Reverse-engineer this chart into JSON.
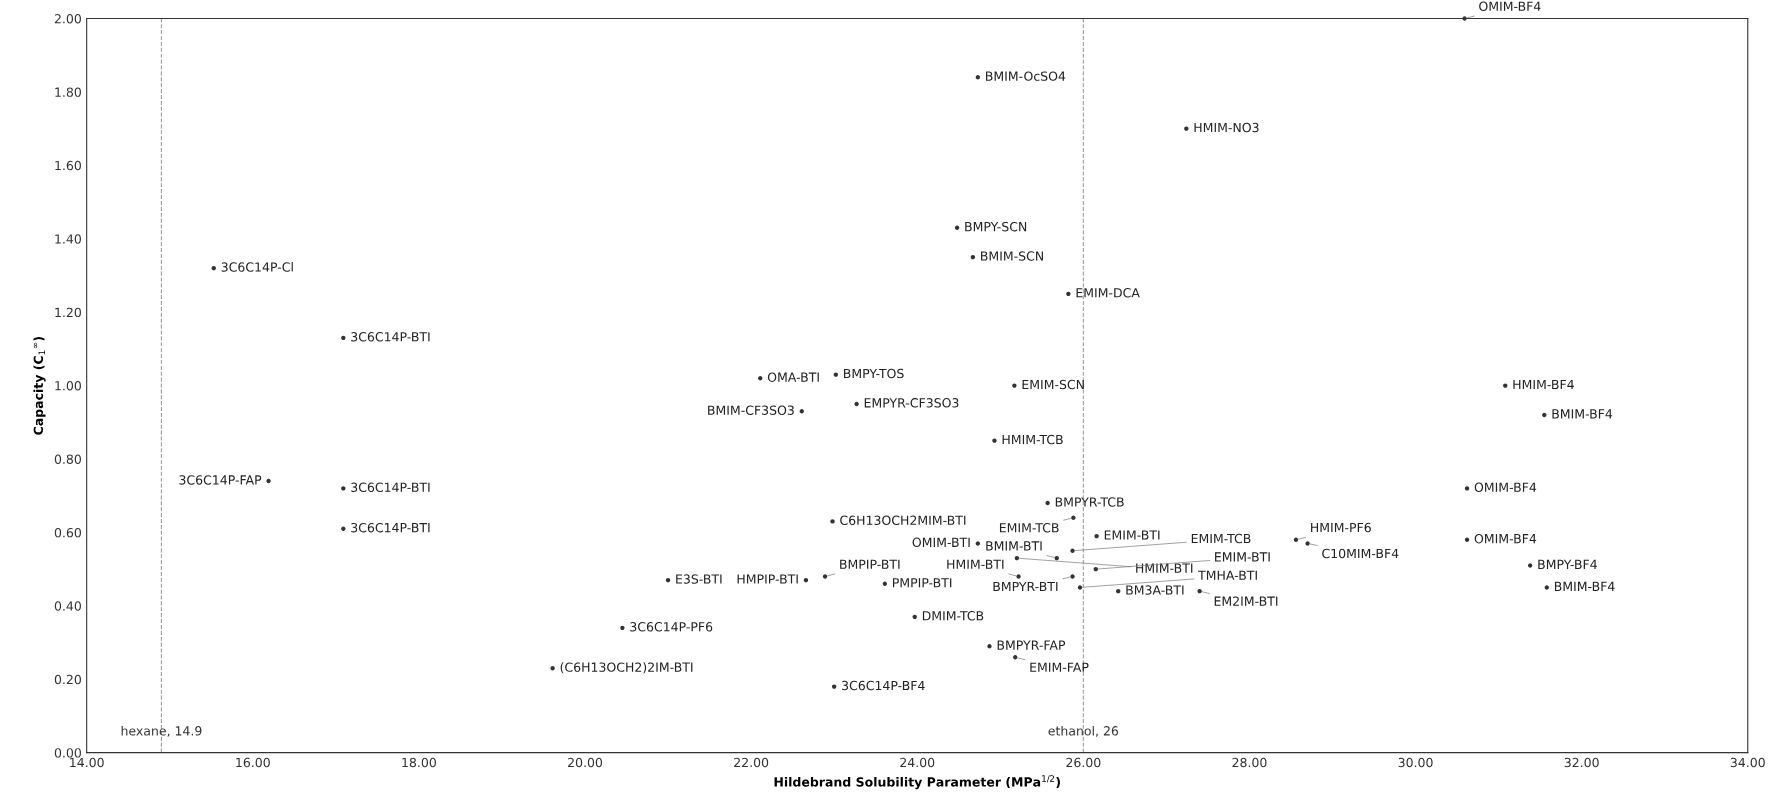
{
  "chart_data": {
    "type": "scatter",
    "xlabel": "Hildebrand Solubility Parameter (MPa$^{1/2}$)",
    "ylabel": "Capacity (C$_{1}$$^{∞}$)",
    "xlim": [
      14,
      34
    ],
    "xticks": [
      {
        "value": 14,
        "label": "14.00"
      },
      {
        "value": 16,
        "label": "16.00"
      },
      {
        "value": 18,
        "label": "18.00"
      },
      {
        "value": 20,
        "label": "20.00"
      },
      {
        "value": 22,
        "label": "22.00"
      },
      {
        "value": 24,
        "label": "24.00"
      },
      {
        "value": 26,
        "label": "26.00"
      },
      {
        "value": 28,
        "label": "28.00"
      },
      {
        "value": 30,
        "label": "30.00"
      },
      {
        "value": 32,
        "label": "32.00"
      },
      {
        "value": 34,
        "label": "34.00"
      }
    ],
    "ylim": [
      0,
      2
    ],
    "yticks": [
      {
        "value": 0,
        "label": "0.00"
      },
      {
        "value": 0.2,
        "label": "0.20"
      },
      {
        "value": 0.4,
        "label": "0.40"
      },
      {
        "value": 0.6,
        "label": "0.60"
      },
      {
        "value": 0.8,
        "label": "0.80"
      },
      {
        "value": 1.0,
        "label": "1.00"
      },
      {
        "value": 1.2,
        "label": "1.20"
      },
      {
        "value": 1.4,
        "label": "1.40"
      },
      {
        "value": 1.6,
        "label": "1.60"
      },
      {
        "value": 1.8,
        "label": "1.80"
      },
      {
        "value": 2.0,
        "label": "2.00"
      }
    ],
    "grid": false,
    "marker": "circle",
    "ref_lines": [
      {
        "axis": "x",
        "value": 14.9,
        "label": "hexane, 14.9",
        "color": "#a0a0a0",
        "line_style": "dashed"
      },
      {
        "axis": "x",
        "value": 26,
        "label": "ethanol, 26",
        "color": "#a0a0a0",
        "line_style": "dashed"
      }
    ],
    "series": [
      {
        "name": "3C6C14P-Cl",
        "color": "#333333",
        "x": [
          15.53
        ],
        "values": [
          1.32
        ]
      },
      {
        "name": "3C6C14P-BTI",
        "color": "#333333",
        "x": [
          17.09
        ],
        "values": [
          1.13
        ]
      },
      {
        "name": "3C6C14P-FAP",
        "color": "#333333",
        "x": [
          16.19
        ],
        "values": [
          0.74
        ]
      },
      {
        "name": "3C6C14P-BTI",
        "color": "#333333",
        "x": [
          17.09
        ],
        "values": [
          0.72
        ]
      },
      {
        "name": "3C6C14P-BTI",
        "color": "#333333",
        "x": [
          17.09
        ],
        "values": [
          0.61
        ]
      },
      {
        "name": "(C6H13OCH2)2IM-BTI",
        "color": "#333333",
        "x": [
          19.61
        ],
        "values": [
          0.23
        ]
      },
      {
        "name": "3C6C14P-PF6",
        "color": "#333333",
        "x": [
          20.45
        ],
        "values": [
          0.34
        ]
      },
      {
        "name": "E3S-BTI",
        "color": "#333333",
        "x": [
          21.0
        ],
        "values": [
          0.47
        ]
      },
      {
        "name": "3C6C14P-BF4",
        "color": "#333333",
        "x": [
          23.0
        ],
        "values": [
          0.18
        ]
      },
      {
        "name": "HMPIP-BTI",
        "color": "#333333",
        "x": [
          22.66
        ],
        "values": [
          0.47
        ]
      },
      {
        "name": "BMPIP-BTI",
        "color": "#333333",
        "x": [
          22.89
        ],
        "values": [
          0.48
        ]
      },
      {
        "name": "PMPIP-BTI",
        "color": "#333333",
        "x": [
          23.61
        ],
        "values": [
          0.46
        ]
      },
      {
        "name": "C6H13OCH2MIM-BTI",
        "color": "#333333",
        "x": [
          22.98
        ],
        "values": [
          0.63
        ]
      },
      {
        "name": "OMA-BTI",
        "color": "#333333",
        "x": [
          22.11
        ],
        "values": [
          1.02
        ]
      },
      {
        "name": "BMPY-TOS",
        "color": "#333333",
        "x": [
          23.02
        ],
        "values": [
          1.03
        ]
      },
      {
        "name": "EMPYR-CF3SO3",
        "color": "#333333",
        "x": [
          23.27
        ],
        "values": [
          0.95
        ]
      },
      {
        "name": "BMIM-CF3SO3",
        "color": "#333333",
        "x": [
          22.61
        ],
        "values": [
          0.93
        ]
      },
      {
        "name": "BMIM-OcSO4",
        "color": "#333333",
        "x": [
          24.73
        ],
        "values": [
          1.84
        ]
      },
      {
        "name": "BMPY-SCN",
        "color": "#333333",
        "x": [
          24.48
        ],
        "values": [
          1.43
        ]
      },
      {
        "name": "BMIM-SCN",
        "color": "#333333",
        "x": [
          24.67
        ],
        "values": [
          1.35
        ]
      },
      {
        "name": "EMIM-DCA",
        "color": "#333333",
        "x": [
          25.82
        ],
        "values": [
          1.25
        ]
      },
      {
        "name": "EMIM-SCN",
        "color": "#333333",
        "x": [
          25.17
        ],
        "values": [
          1.0
        ]
      },
      {
        "name": "HMIM-TCB",
        "color": "#333333",
        "x": [
          24.93
        ],
        "values": [
          0.85
        ]
      },
      {
        "name": "BMPYR-TCB",
        "color": "#333333",
        "x": [
          25.57
        ],
        "values": [
          0.68
        ]
      },
      {
        "name": "EMIM-TCB",
        "color": "#333333",
        "x": [
          25.88
        ],
        "values": [
          0.64
        ]
      },
      {
        "name": "EMIM-BTI",
        "color": "#333333",
        "x": [
          26.16
        ],
        "values": [
          0.59
        ]
      },
      {
        "name": "OMIM-BTI",
        "color": "#333333",
        "x": [
          24.73
        ],
        "values": [
          0.57
        ]
      },
      {
        "name": "HMIM-BTI",
        "color": "#333333",
        "x": [
          25.2
        ],
        "values": [
          0.53
        ]
      },
      {
        "name": "BMIM-BTI",
        "color": "#333333",
        "x": [
          25.68
        ],
        "values": [
          0.53
        ]
      },
      {
        "name": "EMIM-TCB",
        "color": "#333333",
        "x": [
          25.87
        ],
        "values": [
          0.55
        ]
      },
      {
        "name": "EMIM-BTI",
        "color": "#333333",
        "x": [
          26.15
        ],
        "values": [
          0.5
        ]
      },
      {
        "name": "HMIM-BTI",
        "color": "#333333",
        "x": [
          25.22
        ],
        "values": [
          0.48
        ]
      },
      {
        "name": "BMPYR-BTI",
        "color": "#333333",
        "x": [
          25.87
        ],
        "values": [
          0.48
        ]
      },
      {
        "name": "TMHA-BTI",
        "color": "#333333",
        "x": [
          25.96
        ],
        "values": [
          0.45
        ]
      },
      {
        "name": "BM3A-BTI",
        "color": "#333333",
        "x": [
          26.42
        ],
        "values": [
          0.44
        ]
      },
      {
        "name": "EM2IM-BTI",
        "color": "#333333",
        "x": [
          27.4
        ],
        "values": [
          0.44
        ]
      },
      {
        "name": "DMIM-TCB",
        "color": "#333333",
        "x": [
          23.97
        ],
        "values": [
          0.37
        ]
      },
      {
        "name": "BMPYR-FAP",
        "color": "#333333",
        "x": [
          24.87
        ],
        "values": [
          0.29
        ]
      },
      {
        "name": "EMIM-FAP",
        "color": "#333333",
        "x": [
          25.18
        ],
        "values": [
          0.26
        ]
      },
      {
        "name": "HMIM-NO3",
        "color": "#333333",
        "x": [
          27.24
        ],
        "values": [
          1.7
        ]
      },
      {
        "name": "OMIM-BF4",
        "color": "#333333",
        "x": [
          30.59
        ],
        "values": [
          2.0
        ]
      },
      {
        "name": "HMIM-BF4",
        "color": "#333333",
        "x": [
          31.08
        ],
        "values": [
          1.0
        ]
      },
      {
        "name": "BMIM-BF4",
        "color": "#333333",
        "x": [
          31.55
        ],
        "values": [
          0.92
        ]
      },
      {
        "name": "OMIM-BF4",
        "color": "#333333",
        "x": [
          30.62
        ],
        "values": [
          0.72
        ]
      },
      {
        "name": "HMIM-PF6",
        "color": "#333333",
        "x": [
          28.56
        ],
        "values": [
          0.58
        ]
      },
      {
        "name": "C10MIM-BF4",
        "color": "#333333",
        "x": [
          28.7
        ],
        "values": [
          0.57
        ]
      },
      {
        "name": "OMIM-BF4",
        "color": "#333333",
        "x": [
          30.62
        ],
        "values": [
          0.58
        ]
      },
      {
        "name": "BMPY-BF4",
        "color": "#333333",
        "x": [
          31.38
        ],
        "values": [
          0.51
        ]
      },
      {
        "name": "BMIM-BF4",
        "color": "#333333",
        "x": [
          31.58
        ],
        "values": [
          0.45
        ]
      }
    ]
  }
}
